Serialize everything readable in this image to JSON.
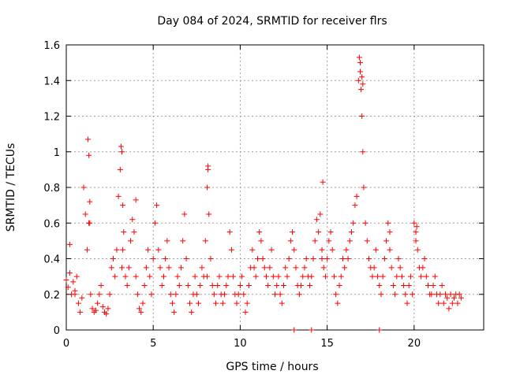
{
  "chart_data": {
    "type": "scatter",
    "title": "Day 084 of 2024, SRMTID for receiver flrs",
    "xlabel": "GPS time / hours",
    "ylabel": "SRMTID / TECUs",
    "xlim": [
      0,
      24
    ],
    "ylim": [
      0,
      1.6
    ],
    "x_ticks": [
      0,
      5,
      10,
      15,
      20
    ],
    "x_tick_labels": [
      "0",
      "5",
      "10",
      "15",
      "20"
    ],
    "y_ticks": [
      0,
      0.2,
      0.4,
      0.6,
      0.8,
      1,
      1.2,
      1.4,
      1.6
    ],
    "y_tick_labels": [
      "0",
      "0.2",
      "0.4",
      "0.6",
      "0.8",
      "1",
      "1.2",
      "1.4",
      "1.6"
    ],
    "grid": true,
    "marker": "+",
    "color": "#ff0000",
    "series": [
      {
        "name": "flrs",
        "x": [
          0.0,
          0.1,
          0.2,
          0.3,
          0.4,
          0.5,
          0.6,
          0.7,
          0.8,
          0.9,
          1.0,
          1.1,
          1.2,
          1.25,
          1.3,
          1.35,
          1.4,
          1.5,
          1.6,
          1.7,
          1.8,
          1.9,
          2.0,
          2.1,
          2.2,
          2.3,
          2.4,
          2.5,
          2.6,
          2.7,
          2.8,
          2.9,
          3.0,
          3.1,
          3.15,
          3.2,
          3.25,
          3.3,
          3.4,
          3.5,
          3.6,
          3.7,
          3.8,
          3.9,
          4.0,
          4.1,
          4.2,
          4.3,
          4.4,
          4.5,
          4.6,
          4.7,
          4.8,
          4.9,
          5.0,
          5.1,
          5.2,
          5.3,
          5.4,
          5.5,
          5.6,
          5.7,
          5.8,
          5.9,
          6.0,
          6.1,
          6.2,
          6.3,
          6.4,
          6.5,
          6.6,
          6.7,
          6.8,
          6.9,
          7.0,
          7.1,
          7.2,
          7.3,
          7.4,
          7.5,
          7.6,
          7.7,
          7.8,
          7.9,
          8.0,
          8.1,
          8.15,
          8.2,
          8.3,
          8.4,
          8.5,
          8.6,
          8.7,
          8.8,
          8.9,
          9.0,
          9.1,
          9.2,
          9.3,
          9.4,
          9.5,
          9.6,
          9.7,
          9.8,
          9.9,
          10.0,
          10.1,
          10.2,
          10.3,
          10.4,
          10.5,
          10.6,
          10.7,
          10.8,
          10.9,
          11.0,
          11.1,
          11.2,
          11.3,
          11.4,
          11.5,
          11.6,
          11.7,
          11.8,
          11.9,
          12.0,
          12.1,
          12.2,
          12.3,
          12.4,
          12.5,
          12.6,
          12.7,
          12.8,
          12.9,
          13.0,
          13.1,
          13.2,
          13.3,
          13.4,
          13.5,
          13.6,
          13.7,
          13.8,
          13.9,
          14.0,
          14.1,
          14.2,
          14.3,
          14.4,
          14.5,
          14.6,
          14.7,
          14.8,
          14.9,
          15.0,
          15.1,
          15.2,
          15.3,
          15.4,
          15.5,
          15.6,
          15.7,
          15.8,
          15.9,
          16.0,
          16.1,
          16.2,
          16.3,
          16.4,
          16.5,
          16.6,
          16.7,
          16.8,
          16.85,
          16.9,
          16.95,
          17.0,
          17.05,
          17.1,
          17.2,
          17.3,
          17.4,
          17.5,
          17.6,
          17.7,
          17.8,
          17.9,
          18.0,
          18.1,
          18.2,
          18.3,
          18.4,
          18.5,
          18.6,
          18.7,
          18.8,
          18.9,
          19.0,
          19.1,
          19.2,
          19.3,
          19.4,
          19.5,
          19.6,
          19.7,
          19.8,
          19.9,
          20.0,
          20.1,
          20.2,
          20.3,
          20.4,
          20.5,
          20.6,
          20.7,
          20.8,
          20.9,
          21.0,
          21.1,
          21.2,
          21.3,
          21.4,
          21.5,
          21.6,
          21.7,
          21.8,
          21.9,
          22.0,
          22.1,
          22.2,
          22.3,
          22.4,
          22.5,
          22.6,
          22.7,
          0.2,
          0.5,
          1.3,
          1.35,
          3.2,
          3.25,
          4.0,
          8.1,
          8.15,
          14.7,
          14.75,
          16.9,
          17.0,
          17.05,
          18.6,
          20.1,
          20.15,
          13.1,
          14.1,
          18.0
        ],
        "y": [
          0.28,
          0.24,
          0.32,
          0.2,
          0.27,
          0.22,
          0.3,
          0.15,
          0.1,
          0.18,
          0.8,
          0.65,
          0.45,
          1.07,
          0.98,
          0.6,
          0.2,
          0.12,
          0.1,
          0.11,
          0.15,
          0.2,
          0.25,
          0.13,
          0.1,
          0.09,
          0.12,
          0.2,
          0.35,
          0.4,
          0.3,
          0.45,
          0.75,
          0.9,
          1.03,
          1.0,
          0.7,
          0.55,
          0.3,
          0.25,
          0.35,
          0.5,
          0.62,
          0.55,
          0.3,
          0.2,
          0.12,
          0.1,
          0.15,
          0.25,
          0.35,
          0.45,
          0.3,
          0.2,
          0.4,
          0.6,
          0.7,
          0.45,
          0.35,
          0.25,
          0.3,
          0.4,
          0.5,
          0.35,
          0.2,
          0.15,
          0.1,
          0.2,
          0.3,
          0.25,
          0.35,
          0.5,
          0.65,
          0.4,
          0.25,
          0.15,
          0.1,
          0.2,
          0.3,
          0.2,
          0.15,
          0.25,
          0.35,
          0.3,
          0.5,
          0.8,
          0.92,
          0.65,
          0.4,
          0.25,
          0.2,
          0.15,
          0.25,
          0.3,
          0.2,
          0.15,
          0.2,
          0.25,
          0.3,
          0.55,
          0.45,
          0.3,
          0.2,
          0.15,
          0.2,
          0.25,
          0.3,
          0.2,
          0.1,
          0.15,
          0.25,
          0.35,
          0.45,
          0.35,
          0.3,
          0.4,
          0.55,
          0.5,
          0.4,
          0.35,
          0.3,
          0.25,
          0.35,
          0.45,
          0.3,
          0.2,
          0.25,
          0.3,
          0.2,
          0.15,
          0.25,
          0.35,
          0.3,
          0.4,
          0.5,
          0.55,
          0.45,
          0.35,
          0.25,
          0.2,
          0.25,
          0.3,
          0.35,
          0.4,
          0.3,
          0.25,
          0.3,
          0.4,
          0.5,
          0.62,
          0.55,
          0.65,
          0.45,
          0.35,
          0.3,
          0.4,
          0.5,
          0.55,
          0.45,
          0.3,
          0.2,
          0.15,
          0.25,
          0.3,
          0.4,
          0.35,
          0.45,
          0.4,
          0.5,
          0.55,
          0.6,
          0.7,
          0.75,
          1.4,
          1.53,
          1.45,
          1.35,
          1.2,
          1.0,
          0.8,
          0.6,
          0.5,
          0.4,
          0.35,
          0.3,
          0.35,
          0.45,
          0.3,
          0.25,
          0.2,
          0.3,
          0.4,
          0.5,
          0.6,
          0.45,
          0.35,
          0.25,
          0.2,
          0.3,
          0.4,
          0.35,
          0.3,
          0.25,
          0.2,
          0.15,
          0.25,
          0.3,
          0.2,
          0.6,
          0.55,
          0.45,
          0.35,
          0.3,
          0.35,
          0.4,
          0.3,
          0.25,
          0.2,
          0.2,
          0.25,
          0.3,
          0.2,
          0.15,
          0.2,
          0.25,
          0.15,
          0.2,
          0.18,
          0.12,
          0.2,
          0.15,
          0.18,
          0.2,
          0.15,
          0.2,
          0.18,
          0.48,
          0.2,
          0.6,
          0.72,
          0.35,
          0.45,
          0.73,
          0.3,
          0.9,
          0.4,
          0.83,
          1.5,
          1.42,
          1.38,
          0.55,
          0.5,
          0.58,
          0.0,
          0.0,
          0.0
        ]
      }
    ]
  }
}
